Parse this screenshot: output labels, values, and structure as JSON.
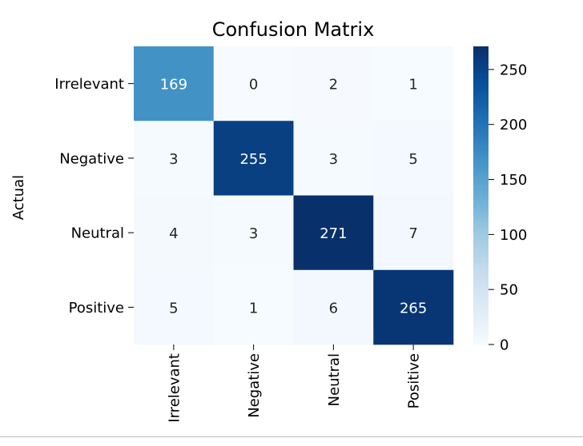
{
  "chart_data": {
    "type": "heatmap",
    "title": "Confusion Matrix",
    "ylabel": "Actual",
    "xlabel": "",
    "row_labels": [
      "Irrelevant",
      "Negative",
      "Neutral",
      "Positive"
    ],
    "col_labels": [
      "Irrelevant",
      "Negative",
      "Neutral",
      "Positive"
    ],
    "values": [
      [
        169,
        0,
        2,
        1
      ],
      [
        3,
        255,
        3,
        5
      ],
      [
        4,
        3,
        271,
        7
      ],
      [
        5,
        1,
        6,
        265
      ]
    ],
    "colormap": "Blues",
    "colorbar": {
      "min": 0,
      "max": 271,
      "ticks": [
        0,
        50,
        100,
        150,
        200,
        250
      ]
    },
    "colors": {
      "low": "#f7fbff",
      "high": "#08306b",
      "text_light": "#ffffff",
      "text_dark": "#262626"
    }
  }
}
